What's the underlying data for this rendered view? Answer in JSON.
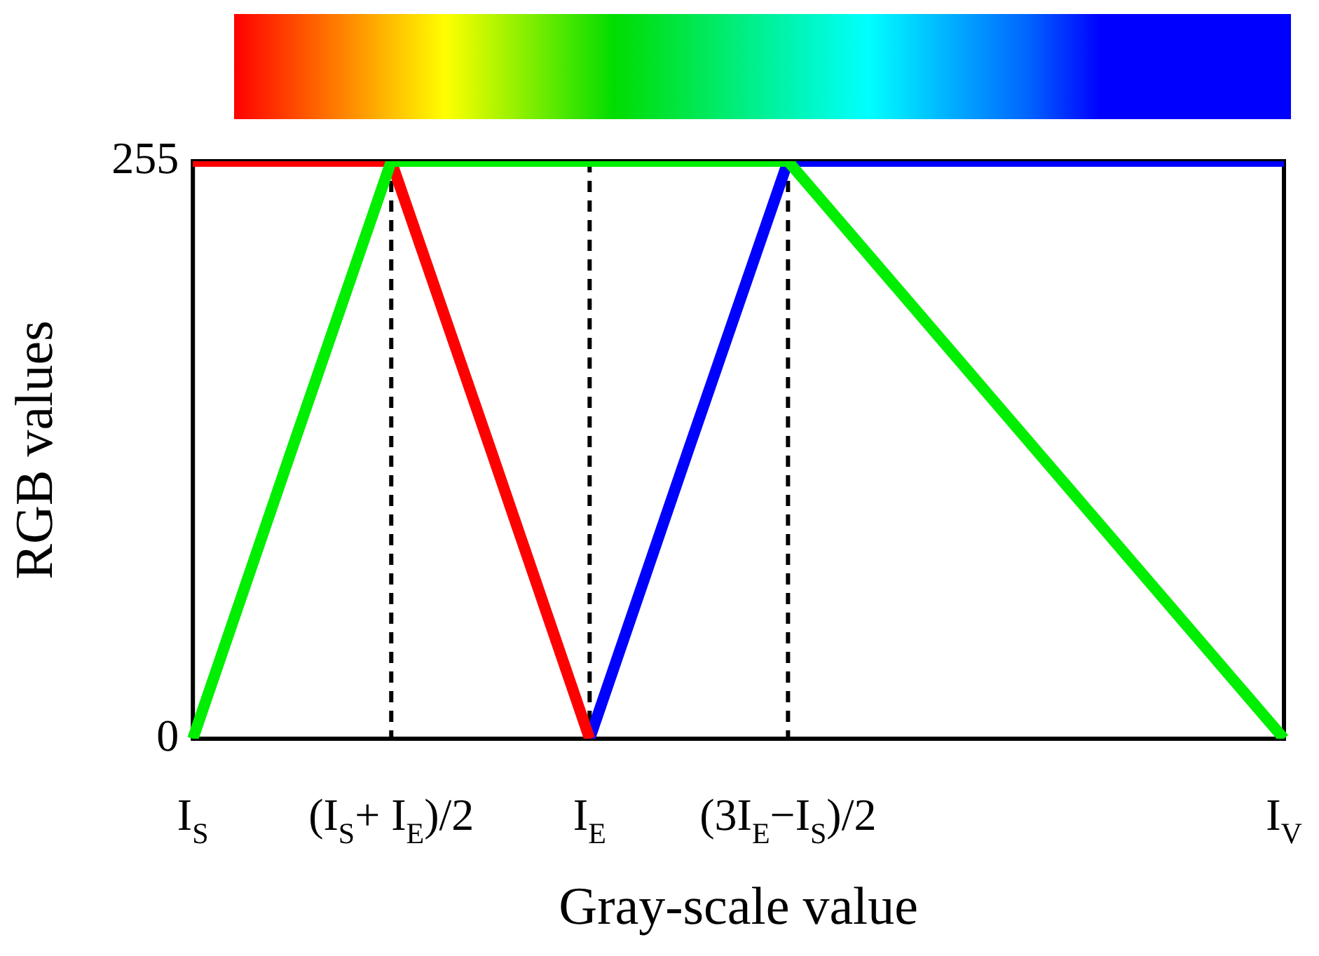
{
  "chart_data": {
    "type": "line",
    "xlabel": "Gray-scale value",
    "ylabel": "RGB values",
    "categories": [
      "I$_{S}$",
      null,
      "(I$_{S}$+ I$_{E}$)/2",
      null,
      "I$_{E}$",
      null,
      "(3I$_{E}$−I$_{S}$)/2",
      null,
      null,
      null,
      null,
      "I$_{V}$"
    ],
    "ylim": [
      0,
      255
    ],
    "yticks": [
      0,
      255
    ],
    "grid": false,
    "legend": false,
    "marker": "none",
    "line_style": "solid",
    "ref_lines": [
      {
        "axis": "x",
        "value": "(I$_{S}$+ I$_{E}$)/2",
        "color": "#000000",
        "line_style": "dashed"
      },
      {
        "axis": "x",
        "value": "I$_{E}$",
        "color": "#000000",
        "line_style": "dashed"
      },
      {
        "axis": "x",
        "value": "(3I$_{E}$−I$_{S}$)/2",
        "color": "#000000",
        "line_style": "dashed"
      }
    ],
    "series": [
      {
        "color": "#00ee00",
        "values": [
          0,
          128,
          255,
          255,
          255,
          255,
          255,
          204,
          153,
          102,
          51,
          0
        ]
      },
      {
        "color": "#ff0000",
        "values": [
          255,
          255,
          255,
          128,
          0,
          null,
          null,
          null,
          null,
          null,
          null,
          null
        ]
      },
      {
        "color": "#0000ff",
        "values": [
          null,
          null,
          null,
          null,
          0,
          128,
          255,
          255,
          255,
          255,
          255,
          255
        ]
      }
    ]
  }
}
